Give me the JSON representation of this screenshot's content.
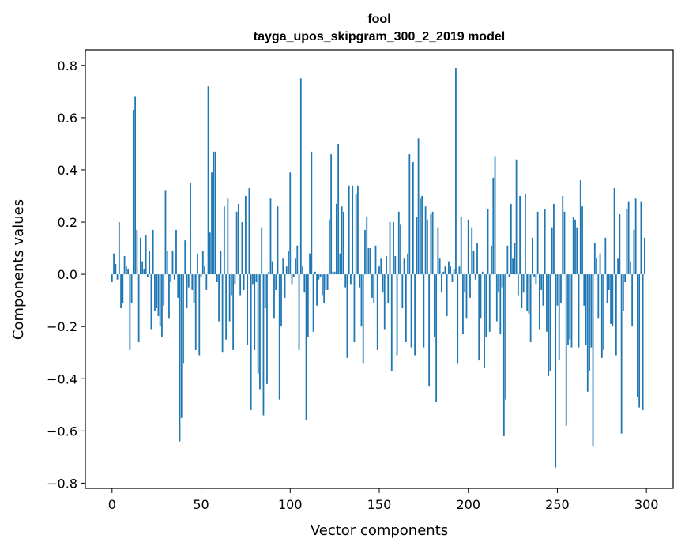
{
  "chart_data": {
    "type": "bar",
    "title": [
      "fool",
      "tayga_upos_skipgram_300_2_2019 model"
    ],
    "xlabel": "Vector components",
    "ylabel": "Components values",
    "xlim": [
      -15,
      315
    ],
    "ylim": [
      -0.82,
      0.86
    ],
    "xticks": [
      0,
      50,
      100,
      150,
      200,
      250,
      300
    ],
    "yticks": [
      -0.8,
      -0.6,
      -0.4,
      -0.2,
      0.0,
      0.2,
      0.4,
      0.6,
      0.8
    ],
    "ytick_labels": [
      "−0.8",
      "−0.6",
      "−0.4",
      "−0.2",
      "0.0",
      "0.2",
      "0.4",
      "0.6",
      "0.8"
    ],
    "bar_color": "#1f77b4",
    "values": [
      -0.03,
      0.08,
      0.04,
      -0.02,
      0.2,
      -0.13,
      -0.11,
      0.07,
      0.03,
      0.02,
      -0.29,
      -0.11,
      0.63,
      0.68,
      0.17,
      -0.26,
      0.14,
      0.05,
      0.02,
      0.15,
      -0.01,
      0.09,
      -0.21,
      0.17,
      -0.14,
      -0.13,
      -0.16,
      -0.2,
      -0.24,
      -0.12,
      0.32,
      0.09,
      -0.17,
      -0.03,
      0.09,
      -0.02,
      0.17,
      -0.09,
      -0.64,
      -0.55,
      -0.34,
      0.13,
      -0.13,
      -0.05,
      0.35,
      -0.06,
      -0.11,
      -0.29,
      0.08,
      -0.31,
      -0.01,
      0.09,
      0.03,
      -0.06,
      0.72,
      0.16,
      0.39,
      0.47,
      0.47,
      -0.03,
      -0.18,
      0.09,
      -0.3,
      0.26,
      -0.25,
      0.29,
      -0.18,
      -0.08,
      -0.29,
      -0.04,
      0.24,
      0.27,
      -0.08,
      0.2,
      -0.06,
      0.3,
      -0.27,
      0.33,
      -0.52,
      -0.04,
      -0.29,
      -0.03,
      -0.38,
      -0.44,
      0.18,
      -0.54,
      -0.13,
      -0.42,
      0.01,
      0.29,
      0.05,
      -0.17,
      -0.06,
      0.26,
      -0.48,
      -0.2,
      0.06,
      -0.09,
      0.03,
      0.09,
      0.39,
      -0.04,
      -0.01,
      0.06,
      0.11,
      -0.29,
      0.75,
      0.03,
      -0.07,
      -0.56,
      -0.24,
      0.08,
      0.47,
      -0.22,
      0.01,
      -0.12,
      -0.02,
      -0.01,
      -0.08,
      -0.11,
      -0.06,
      -0.06,
      0.21,
      0.46,
      0.01,
      0.01,
      0.27,
      0.5,
      0.08,
      0.26,
      0.24,
      -0.05,
      -0.32,
      0.34,
      -0.04,
      0.34,
      -0.26,
      0.31,
      0.34,
      -0.05,
      -0.2,
      -0.34,
      0.17,
      0.22,
      0.1,
      0.1,
      -0.09,
      -0.11,
      0.11,
      -0.29,
      0.03,
      0.06,
      -0.07,
      -0.21,
      0.07,
      -0.11,
      0.2,
      -0.37,
      0.2,
      0.07,
      -0.31,
      0.24,
      0.19,
      -0.13,
      0.06,
      -0.26,
      0.08,
      0.46,
      -0.28,
      0.43,
      -0.31,
      0.22,
      0.52,
      0.29,
      0.3,
      -0.28,
      0.26,
      0.21,
      -0.43,
      0.23,
      0.24,
      -0.24,
      -0.49,
      0.18,
      0.06,
      -0.07,
      0.01,
      0.03,
      -0.16,
      0.05,
      0.03,
      -0.03,
      0.02,
      0.79,
      -0.34,
      0.03,
      0.22,
      -0.23,
      -0.07,
      -0.17,
      0.21,
      -0.09,
      0.18,
      0.09,
      -0.02,
      0.12,
      -0.33,
      -0.17,
      0.01,
      -0.36,
      -0.24,
      0.25,
      -0.22,
      0.11,
      0.37,
      0.45,
      -0.18,
      -0.07,
      -0.23,
      -0.05,
      -0.62,
      -0.48,
      0.11,
      -0.01,
      0.27,
      0.06,
      0.12,
      0.44,
      -0.08,
      0.3,
      -0.13,
      -0.07,
      0.31,
      -0.14,
      -0.15,
      -0.26,
      0.14,
      -0.01,
      -0.04,
      0.24,
      -0.21,
      -0.06,
      -0.12,
      0.25,
      -0.22,
      -0.39,
      -0.37,
      0.18,
      0.27,
      -0.74,
      -0.12,
      -0.33,
      -0.11,
      0.3,
      0.24,
      -0.58,
      -0.27,
      -0.25,
      -0.28,
      0.22,
      0.21,
      0.18,
      -0.28,
      0.36,
      0.26,
      -0.12,
      -0.27,
      -0.45,
      -0.37,
      -0.28,
      -0.66,
      0.12,
      0.06,
      -0.17,
      0.08,
      -0.32,
      -0.29,
      0.14,
      -0.11,
      -0.06,
      -0.19,
      -0.2,
      0.33,
      -0.31,
      0.06,
      0.23,
      -0.61,
      -0.14,
      -0.03,
      0.25,
      0.28,
      0.05,
      -0.2,
      0.17,
      0.29,
      -0.47,
      -0.51,
      0.28,
      -0.52,
      0.14
    ]
  }
}
